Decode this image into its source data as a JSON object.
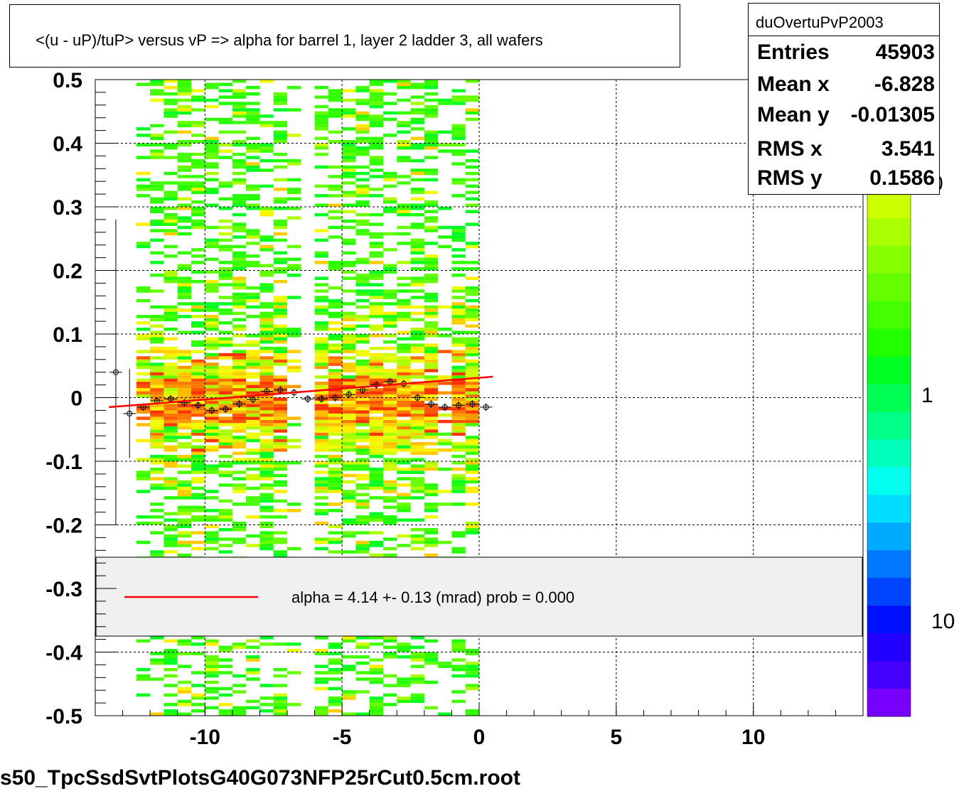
{
  "chart_data": {
    "type": "heatmap",
    "title": "<(u - uP)/tuP> versus   vP => alpha for barrel 1, layer 2 ladder 3, all wafers",
    "xlim": [
      -14,
      14
    ],
    "ylim": [
      -0.5,
      0.5
    ],
    "x_ticks": [
      "-10",
      "-5",
      "0",
      "5",
      "10"
    ],
    "x_tick_values": [
      -10,
      -5,
      0,
      5,
      10
    ],
    "y_ticks": [
      "0.5",
      "0.4",
      "0.3",
      "0.2",
      "0.1",
      "0",
      "-0.1",
      "-0.2",
      "-0.3",
      "-0.4",
      "-0.5"
    ],
    "y_tick_values": [
      0.5,
      0.4,
      0.3,
      0.2,
      0.1,
      0,
      -0.1,
      -0.2,
      -0.3,
      -0.4,
      -0.5
    ],
    "grid": true,
    "data_x_range": [
      -12.5,
      0
    ],
    "profile_points": [
      {
        "x": -13.25,
        "y": 0.04
      },
      {
        "x": -12.75,
        "y": -0.025
      },
      {
        "x": -12.25,
        "y": -0.015
      },
      {
        "x": -11.75,
        "y": -0.005
      },
      {
        "x": -11.25,
        "y": -0.002
      },
      {
        "x": -10.75,
        "y": -0.008
      },
      {
        "x": -10.25,
        "y": -0.012
      },
      {
        "x": -9.75,
        "y": -0.02
      },
      {
        "x": -9.25,
        "y": -0.018
      },
      {
        "x": -8.75,
        "y": -0.01
      },
      {
        "x": -8.25,
        "y": -0.003
      },
      {
        "x": -7.75,
        "y": 0.01
      },
      {
        "x": -7.25,
        "y": 0.012
      },
      {
        "x": -6.75,
        "y": 0.008
      },
      {
        "x": -6.25,
        "y": -0.002
      },
      {
        "x": -5.75,
        "y": -0.002
      },
      {
        "x": -5.25,
        "y": 0.0
      },
      {
        "x": -4.75,
        "y": 0.005
      },
      {
        "x": -4.25,
        "y": 0.012
      },
      {
        "x": -3.75,
        "y": 0.02
      },
      {
        "x": -3.25,
        "y": 0.025
      },
      {
        "x": -2.75,
        "y": 0.022
      },
      {
        "x": -2.25,
        "y": 0.0
      },
      {
        "x": -1.75,
        "y": -0.01
      },
      {
        "x": -1.25,
        "y": -0.015
      },
      {
        "x": -0.75,
        "y": -0.012
      },
      {
        "x": -0.25,
        "y": -0.01
      },
      {
        "x": 0.25,
        "y": -0.015
      }
    ],
    "fit_line": {
      "x": [
        -13.5,
        0.5
      ],
      "y": [
        -0.015,
        0.033
      ],
      "color": "#ff0000"
    },
    "legend": {
      "text": "alpha =    4.14 +-  0.13 (mrad) prob = 0.000",
      "position": "lower-center"
    },
    "colorbar": {
      "labels": [
        "0",
        "1",
        "10"
      ],
      "colors": [
        "#ff9900",
        "#ffcc00",
        "#ffee00",
        "#eeff00",
        "#ccff00",
        "#aaff00",
        "#88ff00",
        "#66ff00",
        "#44ff00",
        "#22ff00",
        "#00ff22",
        "#00ff55",
        "#00ff88",
        "#00ffbb",
        "#00ffee",
        "#00ddff",
        "#00aaff",
        "#0077ff",
        "#0044ff",
        "#0011ff",
        "#2200ff",
        "#4400ff",
        "#7700ff"
      ]
    }
  },
  "stats": {
    "name": "duOvertuPvP2003",
    "entries_label": "Entries",
    "entries": "45903",
    "meanx_label": "Mean x",
    "meanx": "-6.828",
    "meany_label": "Mean y",
    "meany": "-0.01305",
    "rmsx_label": "RMS x",
    "rmsx": "3.541",
    "rmsy_label": "RMS y",
    "rmsy": "0.1586"
  },
  "footer": "s50_TpcSsdSvtPlotsG40G073NFP25rCut0.5cm.root"
}
